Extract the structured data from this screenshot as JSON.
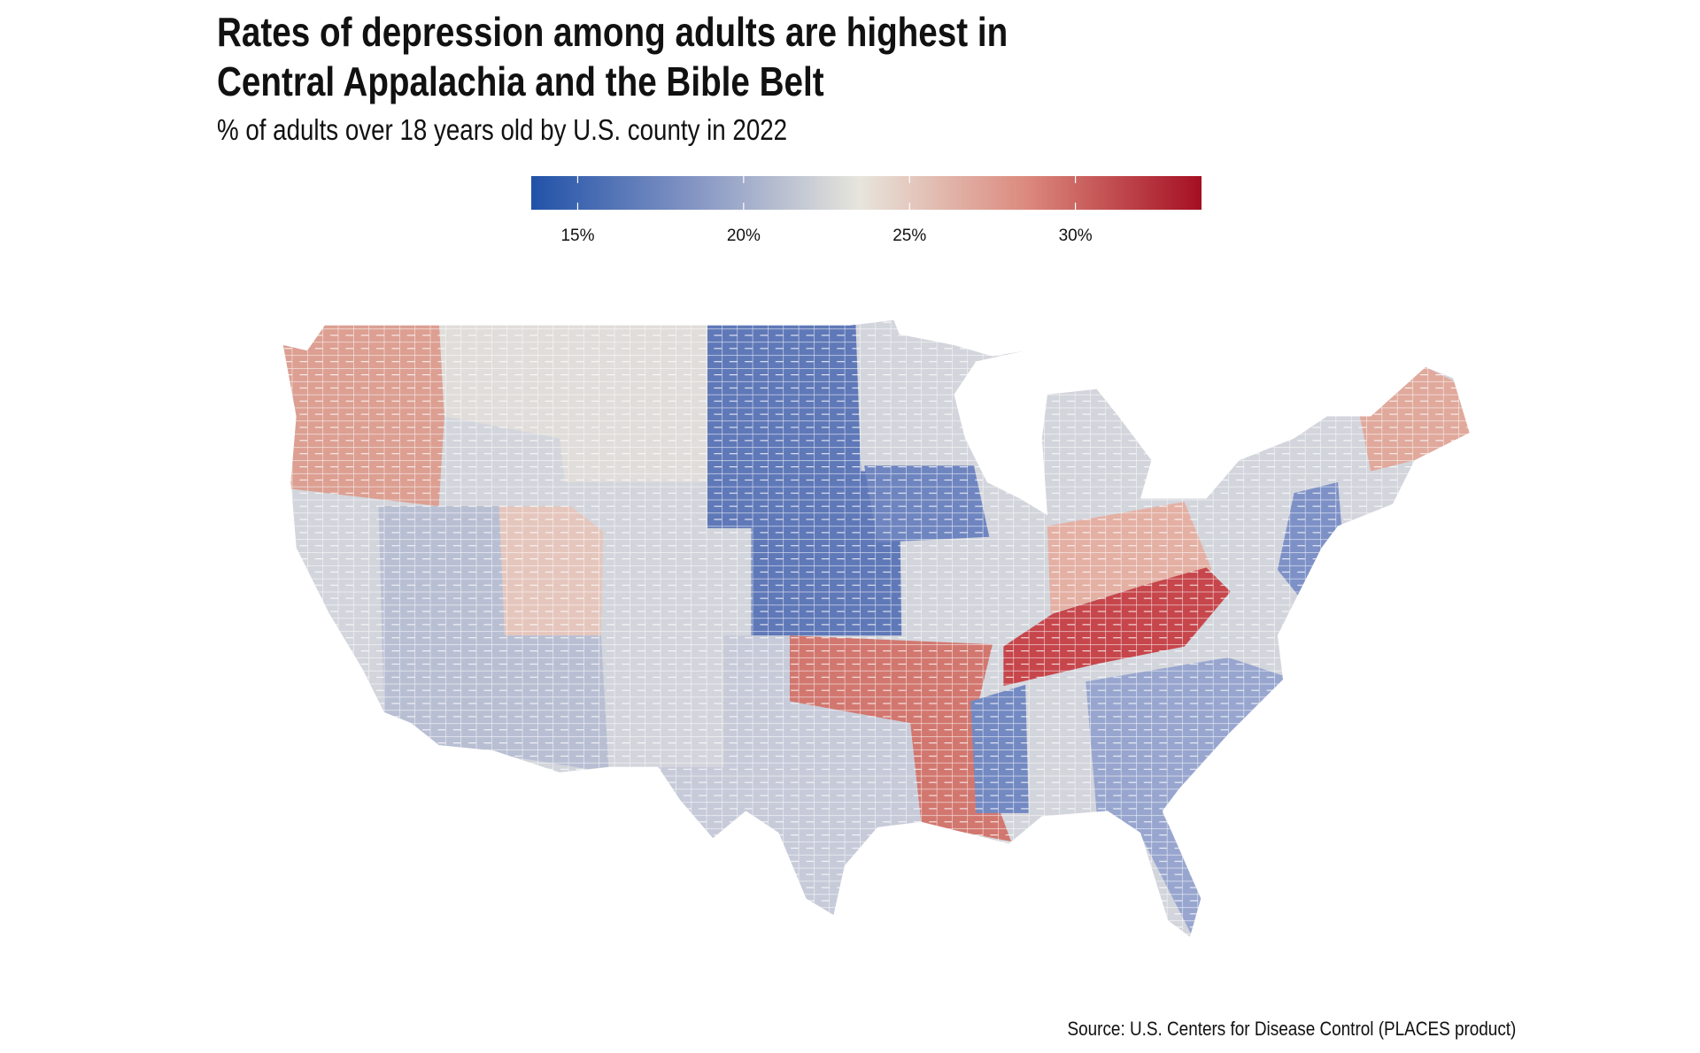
{
  "title_line1": "Rates of depression among adults are highest in",
  "title_line2": "Central Appalachia and the Bible Belt",
  "subtitle": "% of adults over 18 years old by U.S. county in 2022",
  "source": "Source: U.S. Centers for Disease Control (PLACES product)",
  "chart_data": {
    "type": "choropleth",
    "title": "Rates of depression among adults are highest in Central Appalachia and the Bible Belt",
    "subtitle": "% of adults over 18 years old by U.S. county in 2022",
    "geography": "U.S. counties (contiguous states)",
    "legend": {
      "placement": "top",
      "range": [
        13.6,
        33.8
      ],
      "ticks": [
        15,
        20,
        25,
        30
      ],
      "tick_labels": [
        "15%",
        "20%",
        "25%",
        "30%"
      ],
      "colors": [
        "#2152a8",
        "#8495c4",
        "#e7e5dc",
        "#dc8a7e",
        "#a50f22"
      ],
      "midpoint": 23.5
    },
    "highlights": [
      {
        "region": "Central Appalachia (KY, TN, WV)",
        "level": "high"
      },
      {
        "region": "Oklahoma, Arkansas, Louisiana",
        "level": "high"
      },
      {
        "region": "Pacific Northwest",
        "level": "moderately high"
      },
      {
        "region": "Great Plains (Dakotas, Nebraska, Kansas, Iowa)",
        "level": "low"
      },
      {
        "region": "Southeast Atlantic (GA, SC, FL)",
        "level": "low"
      }
    ]
  }
}
